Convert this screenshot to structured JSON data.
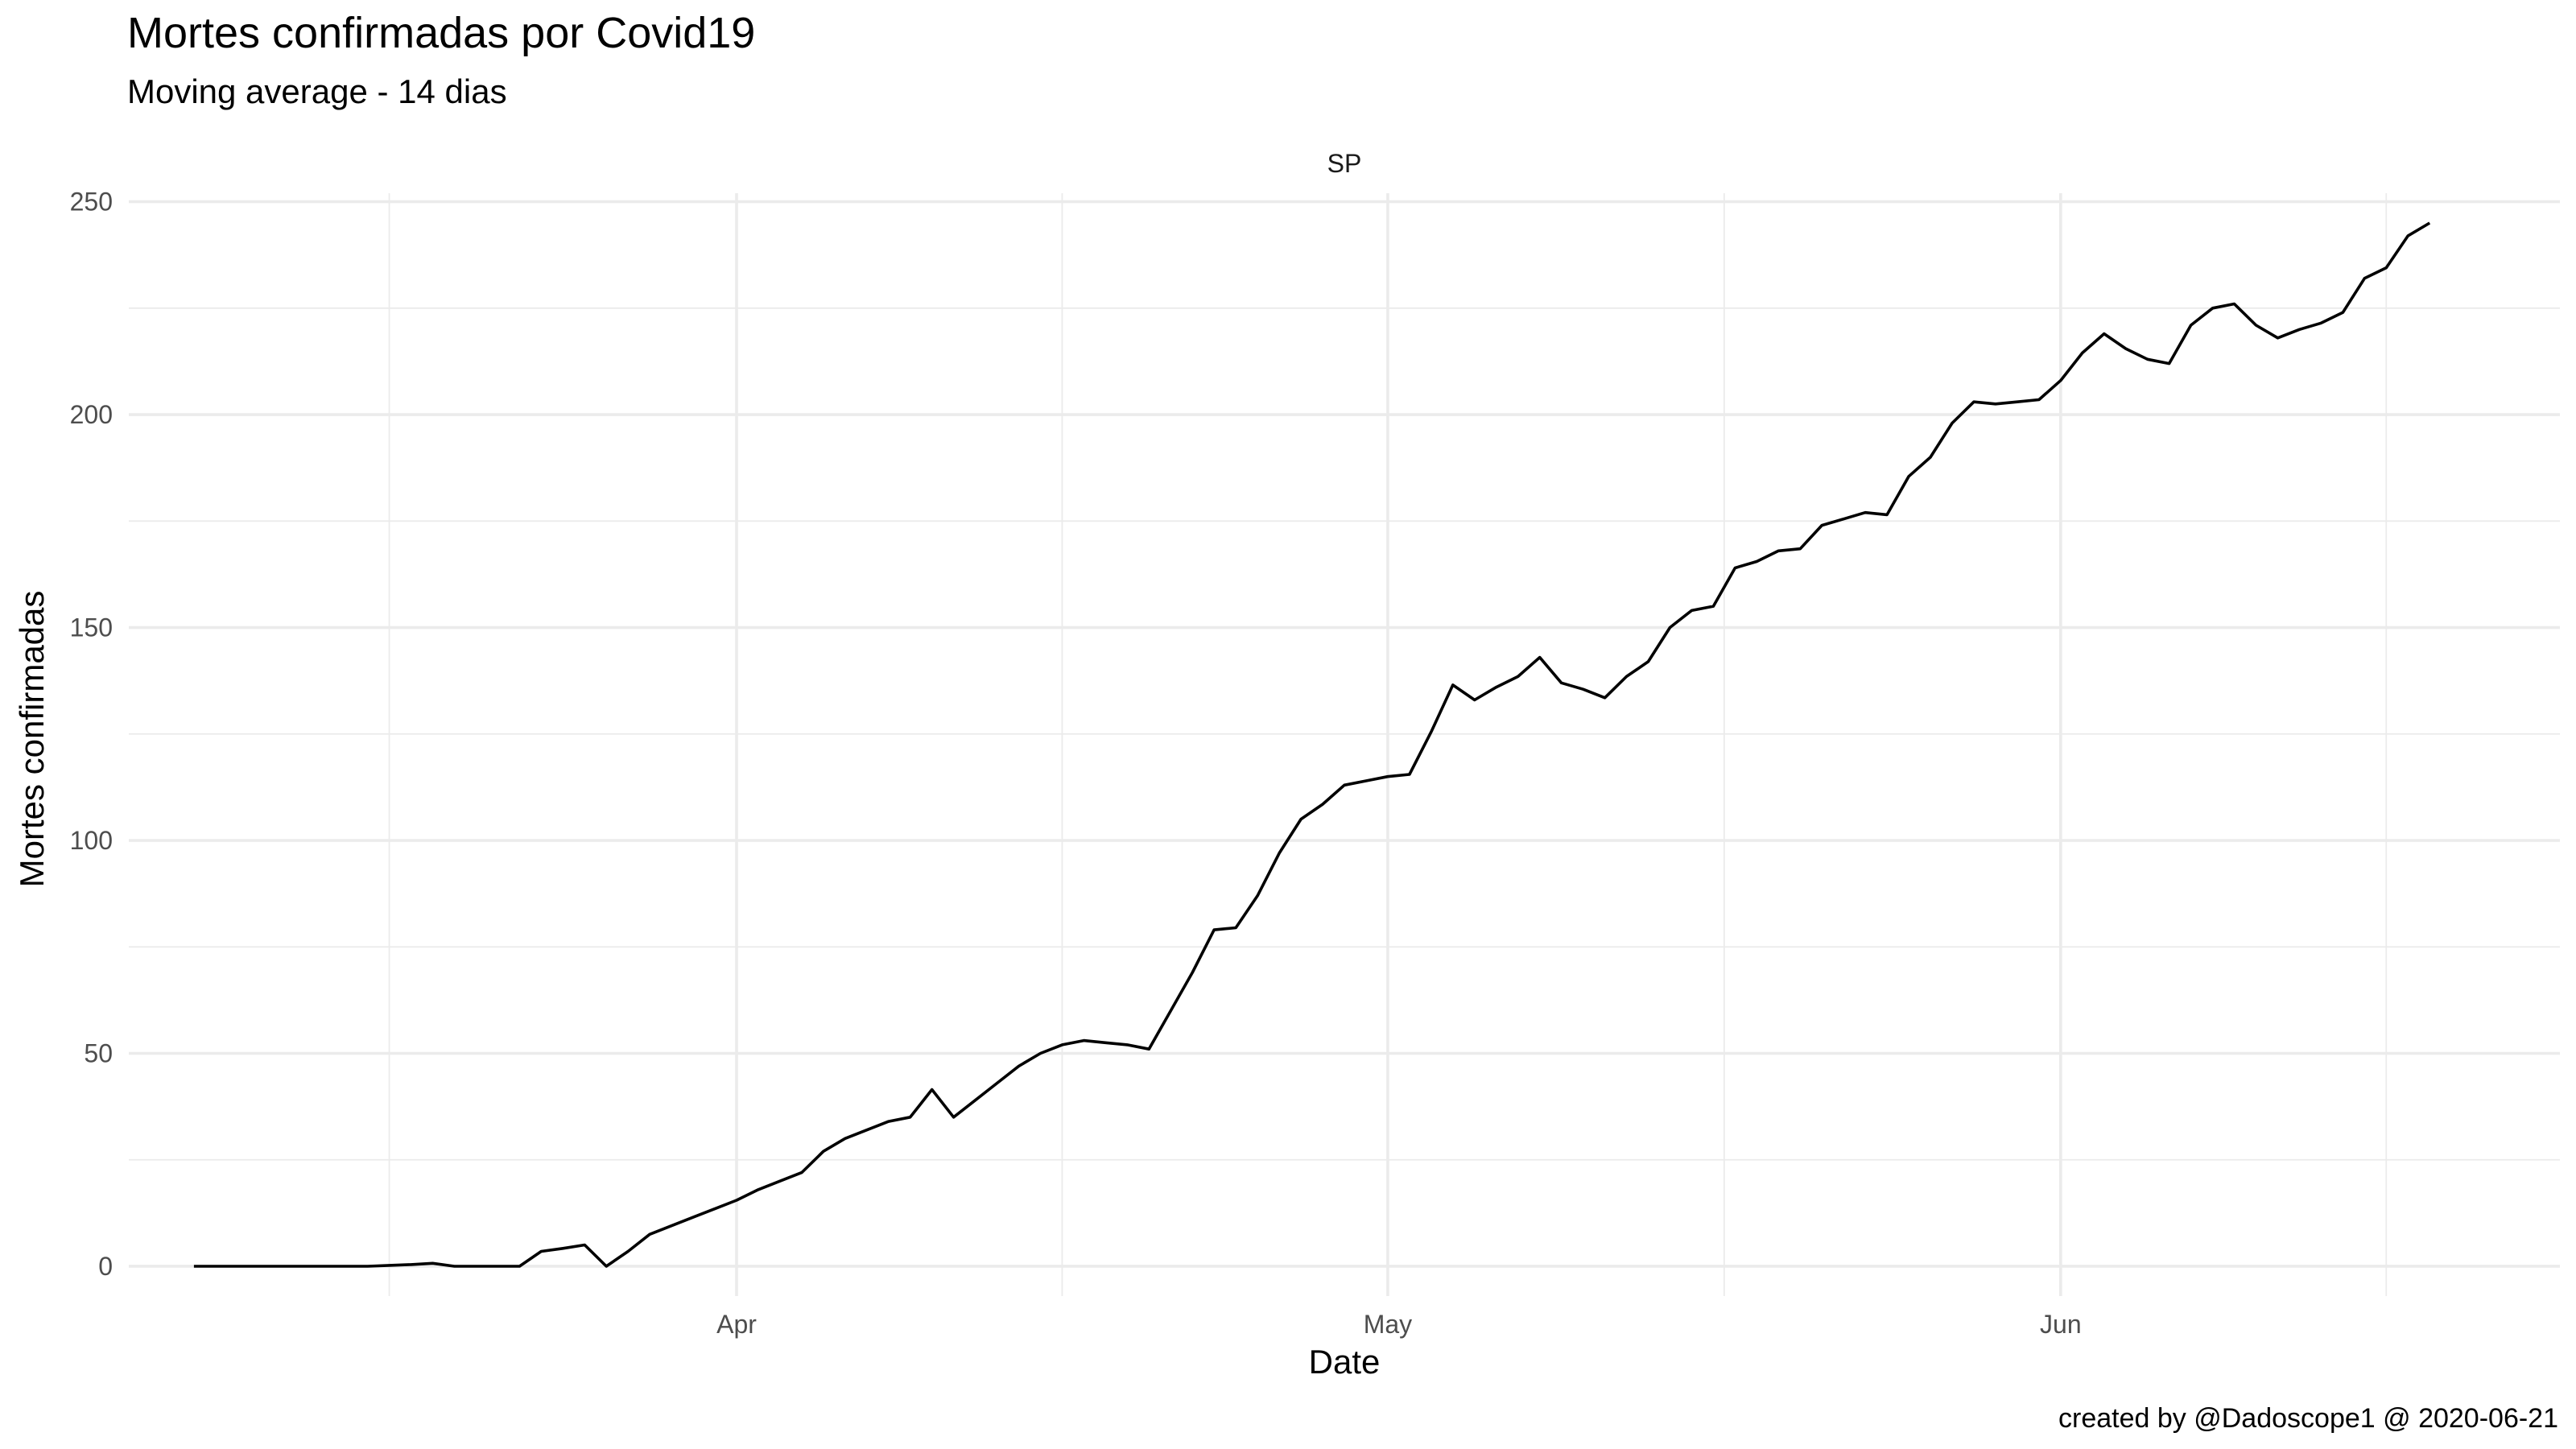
{
  "title": "Mortes confirmadas por Covid19",
  "subtitle": "Moving average - 14 dias",
  "caption": "created by @Dadoscope1 @ 2020-06-21",
  "chart_data": {
    "type": "line",
    "facet": "SP",
    "xlabel": "Date",
    "ylabel": "Mortes confirmadas",
    "x_start": "2020-03-07",
    "x_range": [
      "2020-03-04",
      "2020-06-24"
    ],
    "x_major_ticks": [
      {
        "label": "Apr",
        "date": "2020-04-01"
      },
      {
        "label": "May",
        "date": "2020-05-01"
      },
      {
        "label": "Jun",
        "date": "2020-06-01"
      }
    ],
    "ylim": [
      -7,
      252
    ],
    "y_ticks": [
      0,
      50,
      100,
      150,
      200,
      250
    ],
    "grid": true,
    "line_color": "#000000",
    "grid_color": "#ebebeb",
    "series": [
      {
        "values": [
          0,
          0,
          0,
          0,
          0,
          0,
          0,
          0,
          0,
          0.2,
          0.4,
          0.7,
          0,
          0,
          0,
          0,
          3.5,
          4.2,
          5,
          0,
          3.5,
          7.5,
          9.5,
          11.5,
          13.5,
          15.5,
          18,
          20,
          22,
          27,
          30,
          32,
          34,
          35,
          41.5,
          35,
          39,
          43,
          47,
          50,
          52,
          53,
          52.5,
          52,
          51,
          60,
          69,
          79,
          79.5,
          87,
          97,
          105,
          108.5,
          113,
          114,
          115,
          115.5,
          125.5,
          136.5,
          133,
          136,
          138.5,
          143,
          137,
          135.5,
          133.5,
          138.5,
          142,
          150,
          154,
          155,
          164,
          165.5,
          168,
          168.5,
          174,
          175.5,
          177,
          176.5,
          185.5,
          190,
          198,
          203,
          202.5,
          203,
          203.5,
          208,
          214.5,
          219,
          215.5,
          213,
          212,
          221,
          225,
          226,
          221,
          218,
          220,
          221.5,
          224,
          232,
          234.5,
          242,
          245
        ]
      }
    ]
  }
}
